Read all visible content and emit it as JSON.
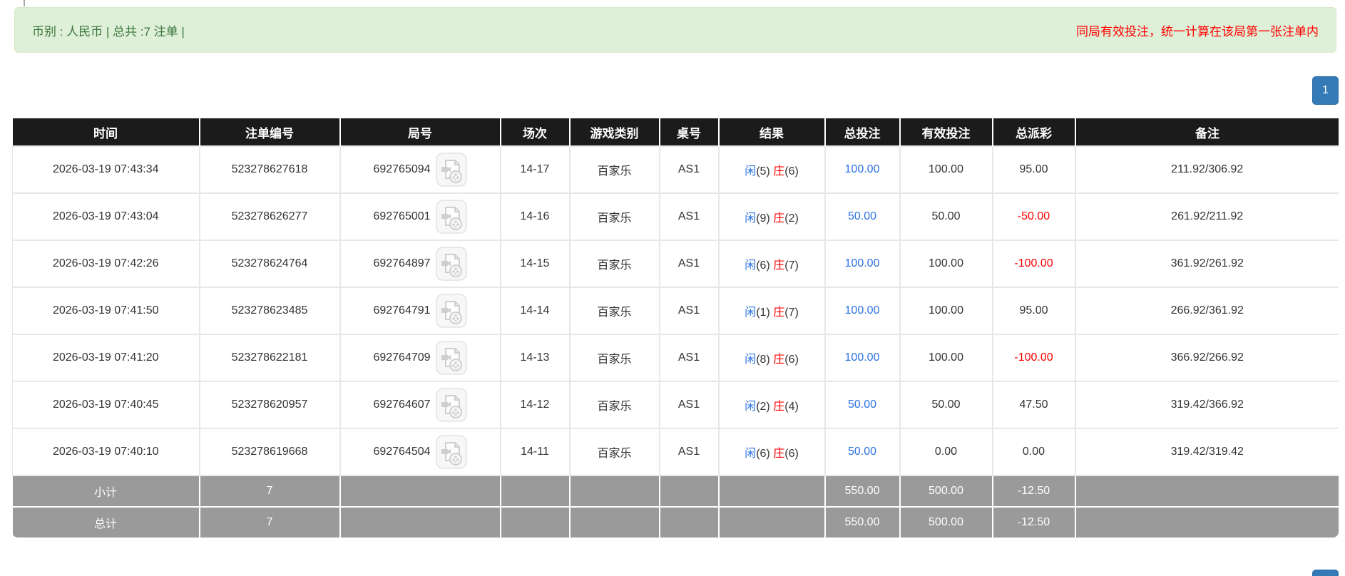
{
  "banner": {
    "left_text": "币别 : 人民币 | 总共 :7 注单 |",
    "right_text": "同局有效投注，统一计算在该局第一张注单内"
  },
  "pagination": {
    "page": "1"
  },
  "table": {
    "headers": [
      "时间",
      "注单编号",
      "局号",
      "场次",
      "游戏类别",
      "桌号",
      "结果",
      "总投注",
      "有效投注",
      "总派彩",
      "备注"
    ],
    "rows": [
      {
        "time": "2026-03-19 07:43:34",
        "bet_id": "523278627618",
        "round_id": "692765094",
        "session": "14-17",
        "game": "百家乐",
        "table_no": "AS1",
        "result": {
          "player_label": "闲",
          "player_val": "(5)",
          "banker_label": "庄",
          "banker_val": "(6)"
        },
        "total_bet": "100.00",
        "valid_bet": "100.00",
        "payout": "95.00",
        "remark": "211.92/306.92"
      },
      {
        "time": "2026-03-19 07:43:04",
        "bet_id": "523278626277",
        "round_id": "692765001",
        "session": "14-16",
        "game": "百家乐",
        "table_no": "AS1",
        "result": {
          "player_label": "闲",
          "player_val": "(9)",
          "banker_label": "庄",
          "banker_val": "(2)"
        },
        "total_bet": "50.00",
        "valid_bet": "50.00",
        "payout": "-50.00",
        "remark": "261.92/211.92"
      },
      {
        "time": "2026-03-19 07:42:26",
        "bet_id": "523278624764",
        "round_id": "692764897",
        "session": "14-15",
        "game": "百家乐",
        "table_no": "AS1",
        "result": {
          "player_label": "闲",
          "player_val": "(6)",
          "banker_label": "庄",
          "banker_val": "(7)"
        },
        "total_bet": "100.00",
        "valid_bet": "100.00",
        "payout": "-100.00",
        "remark": "361.92/261.92"
      },
      {
        "time": "2026-03-19 07:41:50",
        "bet_id": "523278623485",
        "round_id": "692764791",
        "session": "14-14",
        "game": "百家乐",
        "table_no": "AS1",
        "result": {
          "player_label": "闲",
          "player_val": "(1)",
          "banker_label": "庄",
          "banker_val": "(7)"
        },
        "total_bet": "100.00",
        "valid_bet": "100.00",
        "payout": "95.00",
        "remark": "266.92/361.92"
      },
      {
        "time": "2026-03-19 07:41:20",
        "bet_id": "523278622181",
        "round_id": "692764709",
        "session": "14-13",
        "game": "百家乐",
        "table_no": "AS1",
        "result": {
          "player_label": "闲",
          "player_val": "(8)",
          "banker_label": "庄",
          "banker_val": "(6)"
        },
        "total_bet": "100.00",
        "valid_bet": "100.00",
        "payout": "-100.00",
        "remark": "366.92/266.92"
      },
      {
        "time": "2026-03-19 07:40:45",
        "bet_id": "523278620957",
        "round_id": "692764607",
        "session": "14-12",
        "game": "百家乐",
        "table_no": "AS1",
        "result": {
          "player_label": "闲",
          "player_val": "(2)",
          "banker_label": "庄",
          "banker_val": "(4)"
        },
        "total_bet": "50.00",
        "valid_bet": "50.00",
        "payout": "47.50",
        "remark": "319.42/366.92"
      },
      {
        "time": "2026-03-19 07:40:10",
        "bet_id": "523278619668",
        "round_id": "692764504",
        "session": "14-11",
        "game": "百家乐",
        "table_no": "AS1",
        "result": {
          "player_label": "闲",
          "player_val": "(6)",
          "banker_label": "庄",
          "banker_val": "(6)"
        },
        "total_bet": "50.00",
        "valid_bet": "0.00",
        "payout": "0.00",
        "remark": "319.42/319.42"
      }
    ],
    "summary_rows": [
      {
        "label": "小计",
        "count": "7",
        "total_bet": "550.00",
        "valid_bet": "500.00",
        "payout": "-12.50",
        "remark": ""
      },
      {
        "label": "总计",
        "count": "7",
        "total_bet": "550.00",
        "valid_bet": "500.00",
        "payout": "-12.50",
        "remark": ""
      }
    ]
  },
  "colors": {
    "accent_blue": "#337ab7",
    "link_blue": "#2b72e0",
    "negative_red": "#ff0000",
    "banner_green_bg": "#dff0d8",
    "banner_green_text": "#3c763d",
    "header_black": "#1b1b1b",
    "summary_gray": "#9a9a9a"
  },
  "icons": {
    "video_icon": "video-replay-icon"
  }
}
